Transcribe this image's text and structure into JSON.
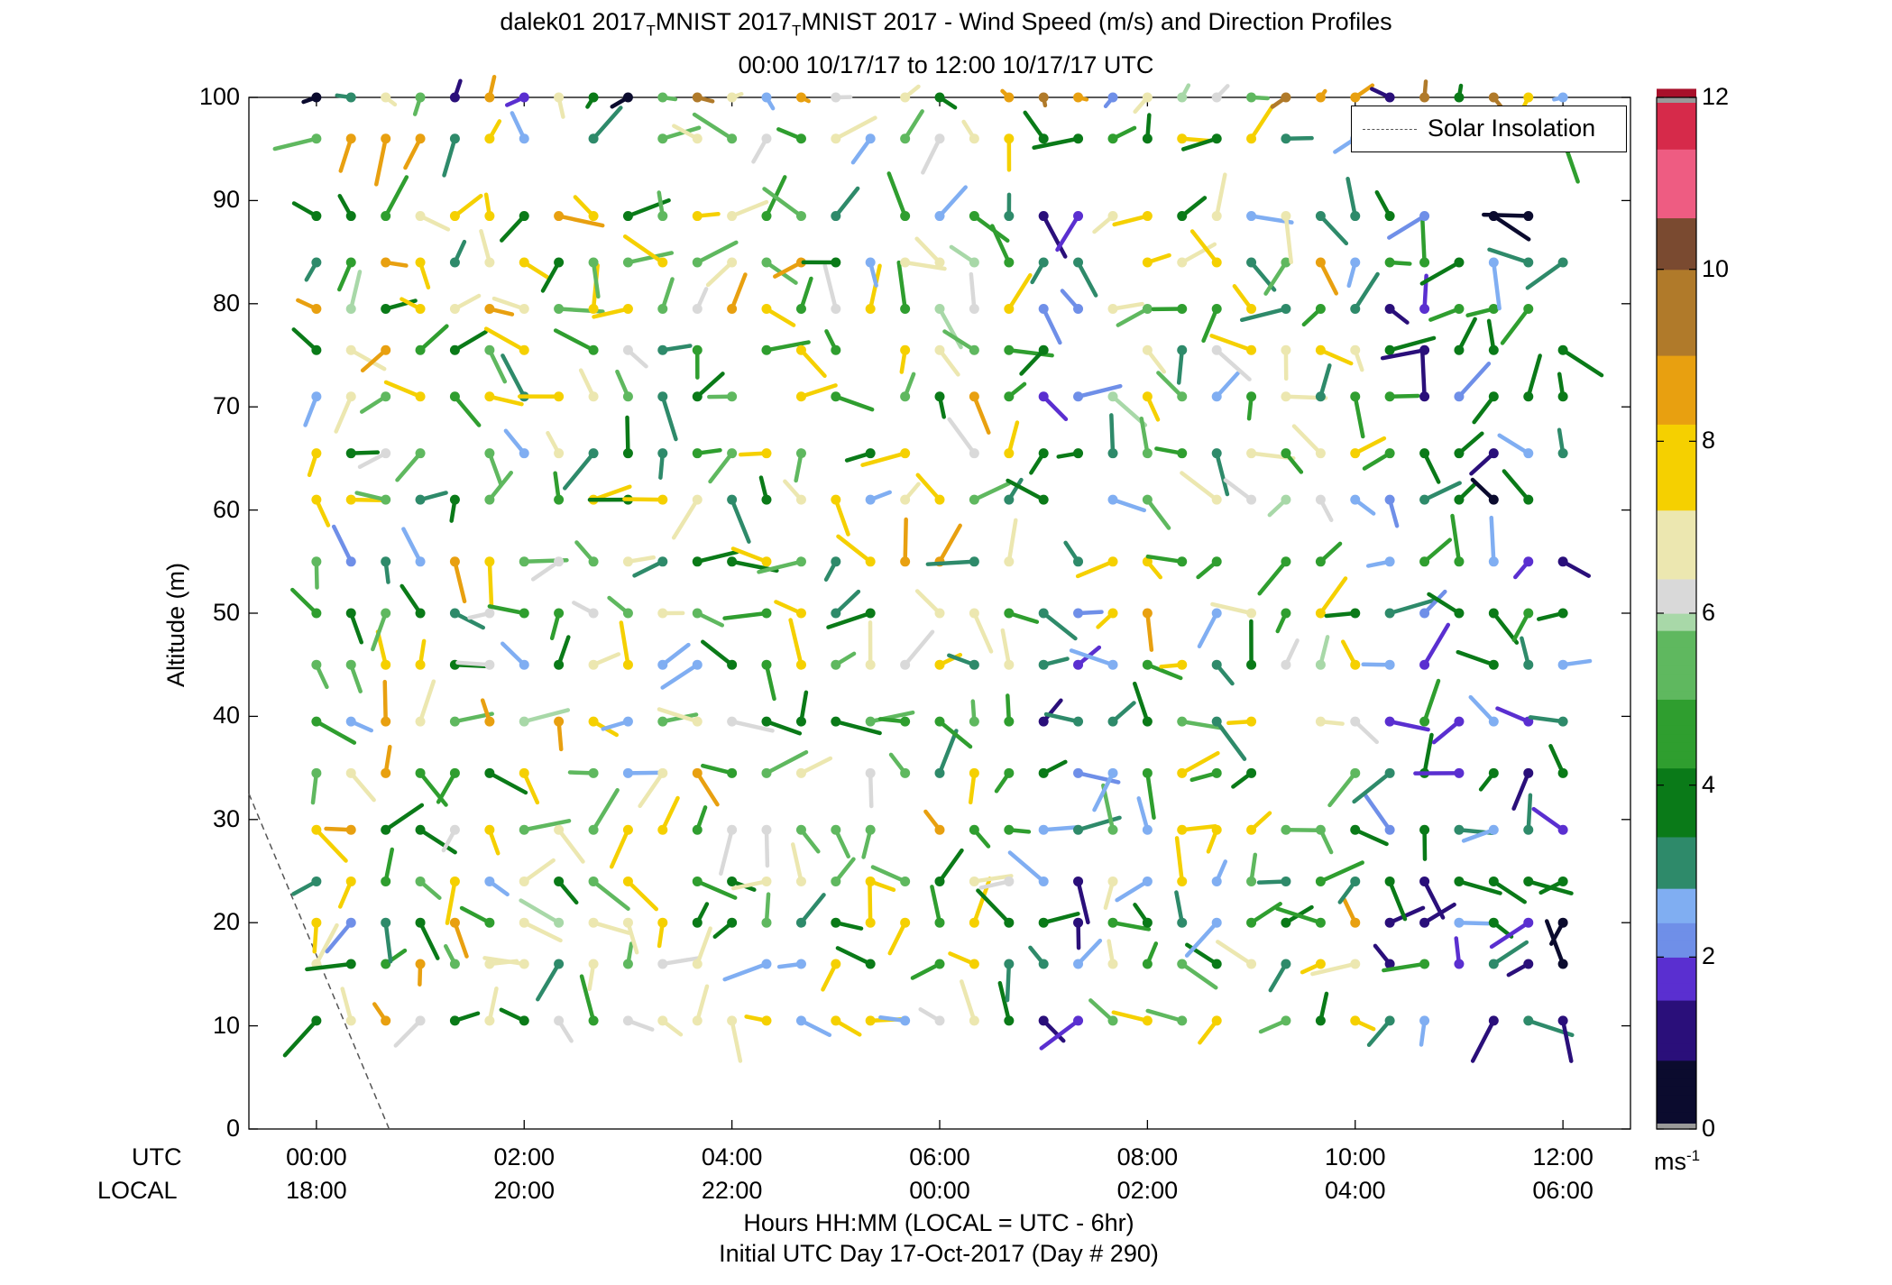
{
  "chart_data": {
    "type": "wind-barb-profile",
    "title": "dalek01 2017_TMNIST 2017_TMNIST 2017 - Wind Speed (m/s) and Direction Profiles",
    "title_parts": [
      "dalek01 2017",
      "T",
      "MNIST 2017",
      "T",
      "MNIST 2017 - Wind Speed (m/s) and Direction Profiles"
    ],
    "subtitle": "00:00 10/17/17 to 12:00 10/17/17  UTC",
    "ylabel": "Altitude (m)",
    "ylim": [
      0,
      100
    ],
    "yticks": [
      "0",
      "10",
      "20",
      "30",
      "40",
      "50",
      "60",
      "70",
      "80",
      "90",
      "100"
    ],
    "xlim_hours": [
      -0.65,
      12.65
    ],
    "xticks_hours": [
      0,
      2,
      4,
      6,
      8,
      10,
      12
    ],
    "xtick_utc": [
      "00:00",
      "02:00",
      "04:00",
      "06:00",
      "08:00",
      "10:00",
      "12:00"
    ],
    "xtick_local": [
      "18:00",
      "20:00",
      "22:00",
      "00:00",
      "02:00",
      "04:00",
      "06:00"
    ],
    "row_label_utc": "UTC",
    "row_label_local": "LOCAL",
    "xlabel": "Hours HH:MM  (LOCAL = UTC - 6hr)",
    "xlabel2": "Initial UTC Day 17-Oct-2017 (Day # 290)",
    "legend": [
      "Solar Insolation"
    ],
    "legend_position": "top-right",
    "solar_insolation": [
      {
        "x": -0.65,
        "y": 32.5
      },
      {
        "x": 0.7,
        "y": 0
      }
    ],
    "colorbar": {
      "min": 0,
      "max": 12,
      "ticks": [
        "0",
        "2",
        "4",
        "6",
        "8",
        "10",
        "12"
      ],
      "unit": "ms",
      "unit_exp": "-1"
    },
    "profile_times_hours": [
      0,
      0.333,
      0.667,
      1.0,
      1.333,
      1.667,
      2.0,
      2.333,
      2.667,
      3.0,
      3.333,
      3.667,
      4.0,
      4.333,
      4.667,
      5.0,
      5.333,
      5.667,
      6.0,
      6.333,
      6.667,
      7.0,
      7.333,
      7.667,
      8.0,
      8.333,
      8.667,
      9.0,
      9.333,
      9.667,
      10.0,
      10.333,
      10.667,
      11.0,
      11.333,
      11.667,
      12.0
    ],
    "profile_altitudes_m": [
      10.5,
      16,
      20,
      24,
      29,
      34.5,
      39.5,
      45,
      50,
      55,
      61,
      65.5,
      71,
      75.5,
      79.5,
      84,
      88.5,
      96,
      100
    ]
  }
}
